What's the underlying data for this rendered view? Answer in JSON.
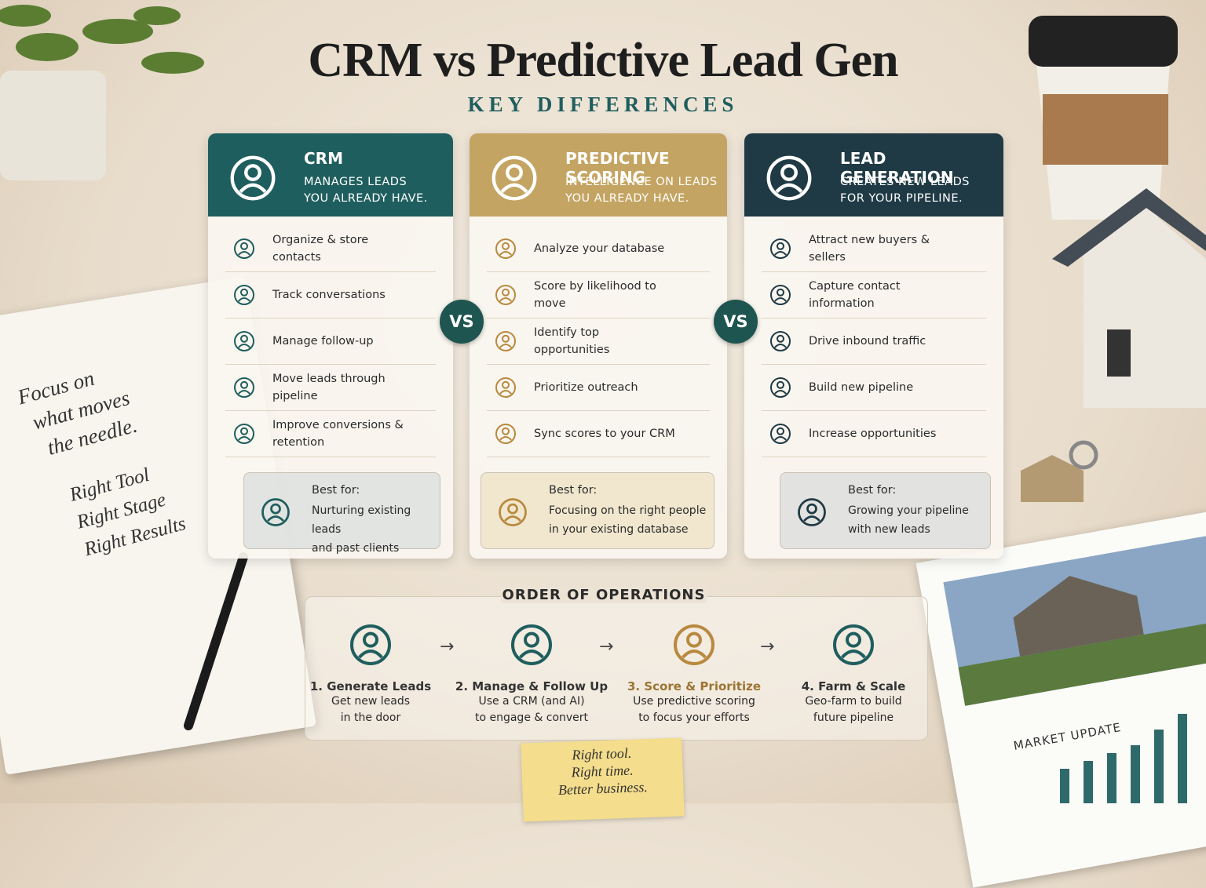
{
  "header": {
    "title": "CRM vs Predictive Lead Gen",
    "subtitle": "KEY DIFFERENCES"
  },
  "cards": [
    {
      "title": "CRM",
      "tagline": [
        "MANAGES LEADS",
        "YOU ALREADY HAVE."
      ],
      "items": [
        "Organize & store contacts",
        "Track conversations",
        "Manage follow-up",
        "Move leads through pipeline",
        "Improve conversions & retention"
      ],
      "best_for": {
        "label": "Best for:",
        "text": [
          "Nurturing existing leads",
          "and past clients"
        ]
      }
    },
    {
      "title": "PREDICTIVE SCORING",
      "tagline": [
        "INTELLIGENCE ON LEADS",
        "YOU ALREADY HAVE."
      ],
      "items": [
        "Analyze your database",
        "Score by likelihood to move",
        "Identify top opportunities",
        "Prioritize outreach",
        "Sync scores to your CRM"
      ],
      "best_for": {
        "label": "Best for:",
        "text": [
          "Focusing on the right people",
          "in your existing database"
        ]
      }
    },
    {
      "title": "LEAD GENERATION",
      "tagline": [
        "CREATES NEW LEADS",
        "FOR YOUR PIPELINE."
      ],
      "items": [
        "Attract new buyers & sellers",
        "Capture contact information",
        "Drive inbound traffic",
        "Build new pipeline",
        "Increase opportunities"
      ],
      "best_for": {
        "label": "Best for:",
        "text": [
          "Growing your pipeline",
          "with new leads"
        ]
      }
    }
  ],
  "vs": [
    "VS",
    "VS"
  ],
  "operations": {
    "title": "ORDER OF OPERATIONS",
    "steps": [
      {
        "title": "1. Generate Leads",
        "text": [
          "Get new leads",
          "in the door"
        ]
      },
      {
        "title": "2. Manage & Follow Up",
        "text": [
          "Use a CRM (and AI)",
          "to engage & convert"
        ]
      },
      {
        "title": "3. Score & Prioritize",
        "text": [
          "Use predictive scoring",
          "to focus your efforts"
        ]
      },
      {
        "title": "4. Farm & Scale",
        "text": [
          "Geo-farm to build",
          "future pipeline"
        ]
      }
    ]
  },
  "notebook": {
    "lines": [
      "Focus on",
      "what moves",
      "the needle."
    ],
    "checklist": [
      "Right Tool",
      "Right Stage",
      "Right Results"
    ]
  },
  "sticky_note": [
    "Right tool.",
    "Right time.",
    "Better business."
  ],
  "market_update": "MARKET UPDATE"
}
